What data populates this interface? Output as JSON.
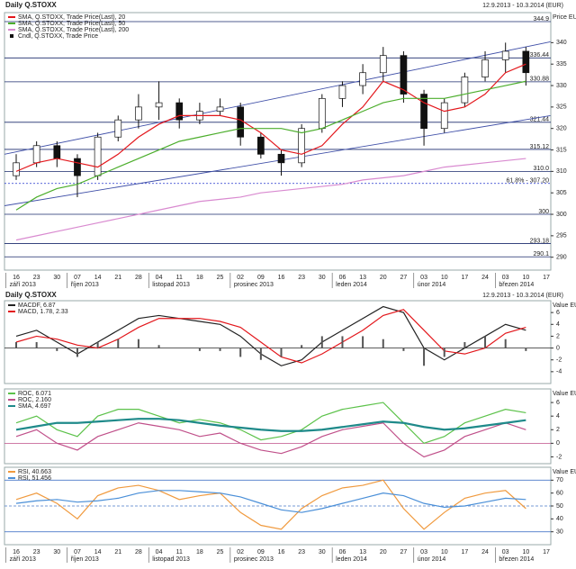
{
  "chart_data": [
    {
      "type": "candlestick",
      "title": "Daily Q.STOXX",
      "subtitle": "12.9.2013 - 10.3.2014 (EUR)",
      "y_axis_label": "Price EUR",
      "candle_name": "Cndl, Q.STOXX, Trade Price",
      "categories": [
        "16",
        "23",
        "30",
        "07",
        "14",
        "21",
        "28",
        "04",
        "11",
        "18",
        "25",
        "02",
        "09",
        "16",
        "23",
        "30",
        "06",
        "13",
        "20",
        "27",
        "03",
        "10",
        "17",
        "24",
        "03",
        "10",
        "17"
      ],
      "months": [
        {
          "label": "září 2013",
          "first": 0
        },
        {
          "label": "říjen 2013",
          "first": 3
        },
        {
          "label": "listopad 2013",
          "first": 7
        },
        {
          "label": "prosinec 2013",
          "first": 11
        },
        {
          "label": "leden 2014",
          "first": 16
        },
        {
          "label": "únor 2014",
          "first": 20
        },
        {
          "label": "březen 2014",
          "first": 24
        }
      ],
      "open": [
        309,
        312,
        316,
        313,
        309,
        318,
        322,
        325,
        326,
        322,
        324,
        325,
        318,
        314,
        312,
        320,
        327,
        330,
        333,
        337,
        328,
        320,
        326,
        332,
        336,
        338,
        null
      ],
      "high": [
        314,
        317,
        317,
        314,
        319,
        323,
        328,
        331,
        327,
        326,
        327,
        326,
        319,
        315,
        321,
        328,
        331,
        335,
        339,
        338,
        329,
        327,
        333,
        338,
        340,
        339,
        null
      ],
      "low": [
        308,
        311,
        311,
        304,
        308,
        317,
        320,
        322,
        320,
        321,
        323,
        316,
        313,
        309,
        311,
        319,
        325,
        328,
        331,
        326,
        316,
        319,
        325,
        331,
        333,
        330,
        null
      ],
      "close": [
        312,
        316,
        313,
        309,
        318,
        322,
        325,
        326,
        322,
        324,
        325,
        318,
        314,
        312,
        320,
        327,
        330,
        333,
        337,
        328,
        320,
        326,
        332,
        336,
        338,
        333,
        null
      ],
      "series": [
        {
          "name": "SMA, Q.STOXX, Trade Price(Last), 20",
          "color": "#e3171c",
          "values": [
            310,
            312,
            313,
            312,
            311,
            314,
            318,
            321,
            323,
            323,
            323,
            322,
            319,
            315,
            314,
            316,
            321,
            325,
            331,
            329,
            326,
            324,
            325,
            328,
            333,
            335,
            null
          ]
        },
        {
          "name": "SMA, Q.STOXX, Trade Price(Last), 50",
          "color": "#4cae2c",
          "values": [
            301,
            304,
            306,
            307,
            309,
            311,
            313,
            315,
            317,
            318,
            319,
            320,
            320,
            320,
            319,
            320,
            322,
            324,
            326,
            327,
            327,
            327,
            328,
            329,
            330,
            331,
            null
          ]
        },
        {
          "name": "SMA, Q.STOXX, Trade Price(Last), 200",
          "color": "#d98ad0",
          "values": [
            294,
            295,
            296,
            297,
            298,
            299,
            300,
            301,
            302,
            303,
            303.5,
            304,
            305,
            305.5,
            306,
            306.5,
            307,
            308,
            308.5,
            309,
            310,
            311,
            311.5,
            312,
            312.5,
            313,
            null
          ]
        }
      ],
      "levels": [
        {
          "value": 344.9,
          "label": "344.9"
        },
        {
          "value": 336.44,
          "label": "336.44"
        },
        {
          "value": 330.88,
          "label": "330.88"
        },
        {
          "value": 321.44,
          "label": "321.44"
        },
        {
          "value": 315.12,
          "label": "315.12"
        },
        {
          "value": 310,
          "label": "310.0"
        },
        {
          "value": 307.2,
          "label": "61.8% - 307.20",
          "dashed": true,
          "color": "#2233cc"
        },
        {
          "value": 300,
          "label": "300"
        },
        {
          "value": 293.18,
          "label": "293.18"
        },
        {
          "value": 290.1,
          "label": "290.1"
        }
      ],
      "trendlines": [
        {
          "from": [
            -0.57,
            314
          ],
          "to": [
            26.2,
            340.2
          ]
        },
        {
          "from": [
            -0.57,
            302
          ],
          "to": [
            26.2,
            323
          ]
        }
      ],
      "ylim": [
        287,
        347
      ],
      "yticks": [
        340,
        335,
        330,
        325,
        320,
        315,
        310,
        305,
        300,
        295,
        290
      ]
    },
    {
      "type": "line",
      "title": "Daily Q.STOXX",
      "subtitle": "12.9.2013 - 10.3.2014 (EUR)",
      "y_axis_label": "Value EUR",
      "series": [
        {
          "name": "MACDF, 6.87",
          "color": "#222222",
          "values": [
            2,
            3,
            1,
            -1,
            1,
            3,
            5,
            5.5,
            5,
            4.5,
            4,
            2,
            -1,
            -3,
            -2,
            1,
            3,
            5,
            7,
            6,
            0,
            -2,
            0,
            2,
            4,
            3,
            null
          ]
        },
        {
          "name": "MACD, 1.78, 2.33",
          "color": "#e3171c",
          "values": [
            1,
            2,
            1.5,
            0.5,
            0,
            1.5,
            3.5,
            5,
            5,
            5,
            4.5,
            3.5,
            1,
            -1.5,
            -2.5,
            -1,
            1,
            3,
            5.5,
            6.5,
            3,
            -0.5,
            -1,
            0,
            2.5,
            3.5,
            null
          ]
        },
        {
          "style": "bar",
          "color": "#555555",
          "values": [
            1,
            1,
            -0.5,
            -1.5,
            1,
            1.5,
            1.5,
            0.5,
            0,
            -0.5,
            -0.5,
            -1.5,
            -2,
            -1.5,
            0.5,
            2,
            2,
            2,
            1.5,
            -0.5,
            -3,
            -1.5,
            1,
            2,
            1.5,
            -0.5,
            null
          ]
        }
      ],
      "reference_lines": [
        {
          "value": 0,
          "color": "#444444"
        }
      ],
      "ylim": [
        -6,
        8
      ],
      "yticks": [
        6,
        4,
        2,
        0,
        -2,
        -4
      ]
    },
    {
      "type": "line",
      "y_axis_label": "Value EUR",
      "series": [
        {
          "name": "ROC, 6.071",
          "color": "#5cc24a",
          "values": [
            3,
            4,
            2,
            1,
            4,
            5,
            5,
            4,
            3,
            3.5,
            3,
            2,
            0.5,
            1,
            2,
            4,
            5,
            5.5,
            6,
            3,
            0,
            1,
            3,
            4,
            5,
            4.5,
            null
          ]
        },
        {
          "name": "ROC, 2.160",
          "color": "#c0508a",
          "values": [
            1,
            2,
            0,
            -1,
            1,
            2,
            3,
            2.5,
            2,
            1,
            1.5,
            0,
            -1,
            -1.5,
            -0.5,
            1,
            2,
            2.5,
            3,
            0,
            -2,
            -1,
            1,
            2,
            3,
            2,
            null
          ]
        },
        {
          "name": "SMA, 4.697",
          "color": "#1f8a8a",
          "width": 2.2,
          "values": [
            2,
            2.5,
            3,
            3,
            3.2,
            3.4,
            3.6,
            3.6,
            3.4,
            3,
            2.6,
            2.3,
            2,
            1.8,
            1.8,
            2,
            2.4,
            2.8,
            3.2,
            3,
            2.4,
            2,
            2.2,
            2.6,
            3,
            3.4,
            null
          ]
        }
      ],
      "reference_lines": [
        {
          "value": 0,
          "color": "#c0508a"
        }
      ],
      "ylim": [
        -3,
        8
      ],
      "yticks": [
        6,
        4,
        2,
        0,
        -2
      ]
    },
    {
      "type": "line",
      "y_axis_label": "Value EUR",
      "categories": [
        "16",
        "23",
        "30",
        "07",
        "14",
        "21",
        "28",
        "04",
        "11",
        "18",
        "25",
        "02",
        "09",
        "16",
        "23",
        "30",
        "06",
        "13",
        "20",
        "27",
        "03",
        "10",
        "17",
        "24",
        "03",
        "10",
        "17"
      ],
      "months": [
        {
          "label": "září 2013",
          "first": 0
        },
        {
          "label": "říjen 2013",
          "first": 3
        },
        {
          "label": "listopad 2013",
          "first": 7
        },
        {
          "label": "prosinec 2013",
          "first": 11
        },
        {
          "label": "leden 2014",
          "first": 16
        },
        {
          "label": "únor 2014",
          "first": 20
        },
        {
          "label": "březen 2014",
          "first": 24
        }
      ],
      "series": [
        {
          "name": "RSI, 40.663",
          "color": "#f09a3e",
          "values": [
            55,
            60,
            52,
            40,
            58,
            64,
            66,
            62,
            55,
            58,
            60,
            45,
            35,
            32,
            48,
            58,
            64,
            66,
            70,
            48,
            32,
            45,
            56,
            60,
            62,
            48,
            null
          ]
        },
        {
          "name": "RSI, 51.456",
          "color": "#4a8fd8",
          "values": [
            52,
            54,
            55,
            53,
            54,
            56,
            60,
            62,
            62,
            61,
            60,
            57,
            52,
            47,
            45,
            48,
            52,
            56,
            60,
            58,
            52,
            49,
            50,
            53,
            56,
            55,
            null
          ]
        }
      ],
      "reference_lines": [
        {
          "value": 70,
          "color": "#4a78c8"
        },
        {
          "value": 50,
          "color": "#4a78c8",
          "dashed": true
        },
        {
          "value": 30,
          "color": "#4a78c8"
        }
      ],
      "ylim": [
        20,
        80
      ],
      "yticks": [
        70,
        60,
        50,
        40,
        30
      ]
    }
  ]
}
